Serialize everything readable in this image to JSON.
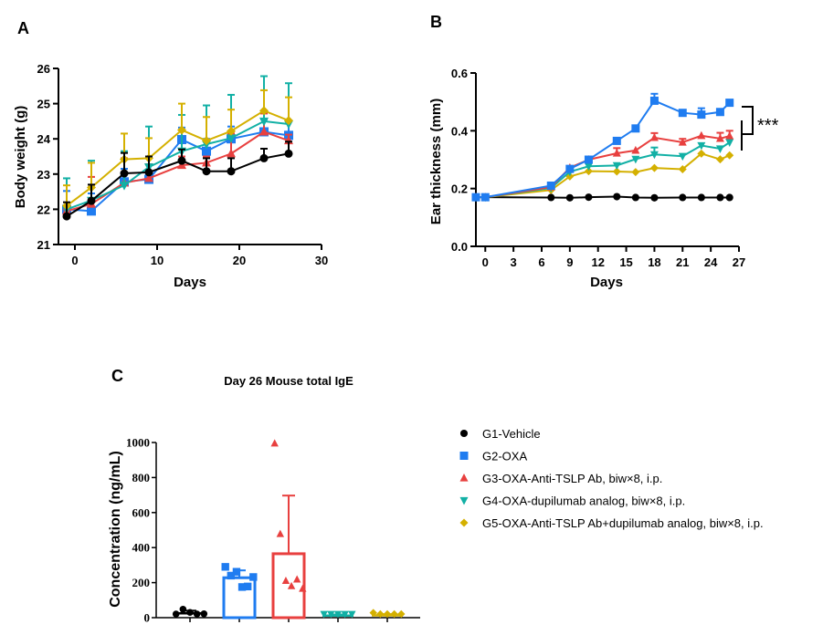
{
  "groups": [
    {
      "id": "G1",
      "label": "G1-Vehicle",
      "color": "#000000",
      "marker": "circle"
    },
    {
      "id": "G2",
      "label": "G2-OXA",
      "color": "#1f7cf0",
      "marker": "square"
    },
    {
      "id": "G3",
      "label": "G3-OXA-Anti-TSLP Ab, biw×8, i.p.",
      "color": "#e8403f",
      "marker": "triangle-up"
    },
    {
      "id": "G4",
      "label": "G4-OXA-dupilumab analog, biw×8, i.p.",
      "color": "#12b0a5",
      "marker": "triangle-down"
    },
    {
      "id": "G5",
      "label": "G5-OXA-Anti-TSLP Ab+dupilumab analog, biw×8, i.p.",
      "color": "#d4b000",
      "marker": "diamond"
    }
  ],
  "chart_data": [
    {
      "panel": "A",
      "type": "line",
      "title": "",
      "xlabel": "Days",
      "ylabel": "Body weight (g)",
      "xlim": [
        -2,
        30
      ],
      "ylim": [
        21,
        26
      ],
      "xticks": [
        0,
        10,
        20,
        30
      ],
      "yticks": [
        21,
        22,
        23,
        24,
        25,
        26
      ],
      "x": [
        -1,
        2,
        6,
        9,
        13,
        16,
        19,
        23,
        26
      ],
      "series": [
        {
          "name": "G1-Vehicle",
          "values": [
            21.8,
            22.24,
            23.02,
            23.05,
            23.38,
            23.08,
            23.08,
            23.45,
            23.58
          ],
          "err_upper": [
            22.2,
            22.7,
            23.6,
            23.5,
            23.7,
            23.45,
            23.45,
            23.72,
            23.92
          ]
        },
        {
          "name": "G2-OXA",
          "values": [
            22.0,
            21.95,
            22.78,
            22.85,
            23.98,
            23.65,
            24.0,
            24.2,
            24.1
          ],
          "err_upper": [
            22.52,
            22.45,
            23.15,
            23.0,
            24.32,
            24.0,
            24.35,
            24.55,
            24.5
          ]
        },
        {
          "name": "G3-OXA-Anti-TSLP Ab, biw×8, i.p.",
          "values": [
            21.95,
            22.15,
            22.75,
            22.88,
            23.25,
            23.32,
            23.58,
            24.2,
            23.95
          ],
          "err_upper": [
            22.0,
            22.92,
            23.45,
            23.28,
            23.5,
            23.5,
            24.15,
            24.72,
            24.12
          ]
        },
        {
          "name": "G4-OXA-dupilumab analog, biw×8, i.p.",
          "values": [
            22.0,
            22.25,
            22.68,
            23.2,
            23.65,
            23.85,
            24.02,
            24.5,
            24.42
          ],
          "err_upper": [
            22.88,
            23.38,
            23.65,
            24.35,
            24.68,
            24.95,
            25.25,
            25.78,
            25.58
          ]
        },
        {
          "name": "G5-OXA-Anti-TSLP Ab+dupilumab analog, biw×8, i.p.",
          "values": [
            22.1,
            22.62,
            23.42,
            23.45,
            24.25,
            23.95,
            24.22,
            24.8,
            24.52
          ],
          "err_upper": [
            22.68,
            23.32,
            24.15,
            24.02,
            25.0,
            24.62,
            24.83,
            25.38,
            25.18
          ]
        }
      ]
    },
    {
      "panel": "B",
      "type": "line",
      "title": "",
      "xlabel": "Days",
      "ylabel": "Ear thickness (mm)",
      "xlim": [
        -1,
        27
      ],
      "ylim": [
        0.0,
        0.6
      ],
      "xticks": [
        0,
        3,
        6,
        9,
        12,
        15,
        18,
        21,
        24,
        27
      ],
      "yticks": [
        0.0,
        0.2,
        0.4,
        0.6
      ],
      "ytick_labels": [
        "0.0",
        "0.2",
        "0.4",
        "0.6"
      ],
      "x": [
        -1,
        0,
        7,
        9,
        11,
        14,
        16,
        18,
        21,
        23,
        25,
        26
      ],
      "annotation": "***",
      "series": [
        {
          "name": "G1-Vehicle",
          "values": [
            0.17,
            0.17,
            0.169,
            0.168,
            0.17,
            0.172,
            0.169,
            0.168,
            0.169,
            0.169,
            0.169,
            0.169
          ],
          "err_upper": null
        },
        {
          "name": "G2-OXA",
          "values": [
            0.17,
            0.17,
            0.21,
            0.268,
            0.3,
            0.365,
            0.408,
            0.504,
            0.462,
            0.456,
            0.465,
            0.497
          ],
          "err_upper": [
            null,
            null,
            null,
            null,
            null,
            null,
            null,
            0.528,
            null,
            0.478,
            null,
            null
          ]
        },
        {
          "name": "G3-OXA-Anti-TSLP Ab, biw×8, i.p.",
          "values": [
            0.17,
            0.17,
            0.205,
            0.272,
            0.3,
            0.322,
            0.332,
            0.376,
            0.36,
            0.383,
            0.373,
            0.382
          ],
          "err_upper": [
            null,
            null,
            null,
            null,
            null,
            0.34,
            null,
            0.392,
            0.372,
            null,
            0.393,
            0.4
          ]
        },
        {
          "name": "G4-OXA-dupilumab analog, biw×8, i.p.",
          "values": [
            0.17,
            0.17,
            0.202,
            0.258,
            0.277,
            0.28,
            0.302,
            0.318,
            0.312,
            0.349,
            0.338,
            0.36
          ],
          "err_upper": [
            null,
            null,
            null,
            null,
            null,
            null,
            null,
            0.342,
            null,
            null,
            null,
            null
          ]
        },
        {
          "name": "G5-OXA-Anti-TSLP Ab+dupilumab analog, biw×8, i.p.",
          "values": [
            0.17,
            0.17,
            0.195,
            0.242,
            0.26,
            0.259,
            0.257,
            0.271,
            0.267,
            0.321,
            0.301,
            0.315
          ],
          "err_upper": null
        }
      ]
    },
    {
      "panel": "C",
      "type": "bar",
      "title": "Day 26 Mouse total IgE",
      "xlabel": "",
      "ylabel": "Concentration (ng/mL)",
      "ylim": [
        0,
        1000
      ],
      "yticks": [
        0,
        200,
        400,
        600,
        800,
        1000
      ],
      "categories": [
        "G1-Vehicle",
        "G2-OXA",
        "G3-OXA-Anti-TSLP Ab, biw×8, i.p.",
        "G4-OXA-dupilumab analog, biw×8, i.p.",
        "G5-OXA-Anti-TSLP Ab+dupilumab analog, biw×8, i.p."
      ],
      "values": [
        25,
        228,
        365,
        12,
        13
      ],
      "err_upper": [
        40,
        270,
        697,
        18,
        20
      ],
      "points": [
        [
          15,
          48,
          30,
          20,
          22
        ],
        [
          290,
          240,
          262,
          175,
          178,
          232
        ],
        [
          995,
          478,
          210,
          180,
          218,
          165
        ],
        [
          15,
          10,
          12,
          8,
          6
        ],
        [
          28,
          10,
          8,
          10,
          12
        ]
      ]
    }
  ],
  "panels": {
    "A": {
      "letter": "A"
    },
    "B": {
      "letter": "B"
    },
    "C": {
      "letter": "C"
    }
  }
}
